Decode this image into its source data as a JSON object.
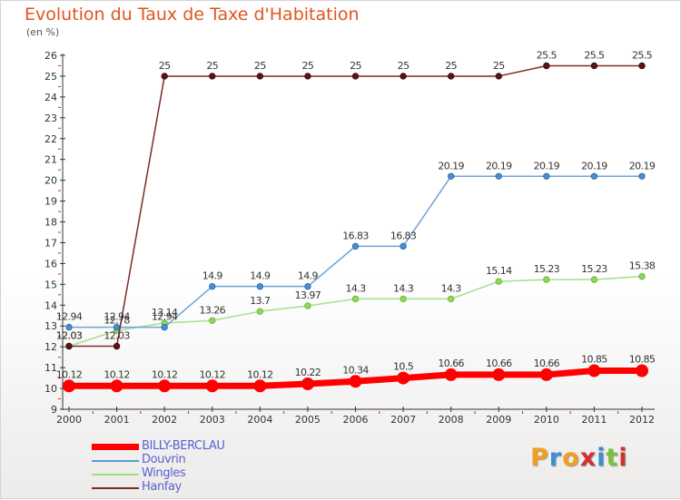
{
  "title": "Evolution du Taux de Taxe d'Habitation",
  "unit": "(en %)",
  "logo": "Proxiti",
  "chart_data": {
    "type": "line",
    "title": "Evolution du Taux de Taxe d'Habitation",
    "ylabel": "(en %)",
    "xlabel": "",
    "x": [
      "2000",
      "2001",
      "2002",
      "2003",
      "2004",
      "2005",
      "2006",
      "2007",
      "2008",
      "2009",
      "2010",
      "2011",
      "2012"
    ],
    "ylim": [
      9,
      26
    ],
    "yticks": [
      "9",
      "10",
      "11",
      "12",
      "13",
      "14",
      "15",
      "16",
      "17",
      "18",
      "19",
      "20",
      "21",
      "22",
      "23",
      "24",
      "25",
      "26"
    ],
    "grid": false,
    "legend_position": "bottom-left",
    "series": [
      {
        "name": "BILLY-BERCLAU",
        "color": "#ff0000",
        "values": [
          10.12,
          10.12,
          10.12,
          10.12,
          10.12,
          10.22,
          10.34,
          10.5,
          10.66,
          10.66,
          10.66,
          10.85,
          10.85
        ],
        "labels": [
          "10.12",
          "10.12",
          "10.12",
          "10.12",
          "10.12",
          "10.22",
          "10.34",
          "10.5",
          "10.66",
          "10.66",
          "10.66",
          "10.85",
          "10.85"
        ]
      },
      {
        "name": "Douvrin",
        "color": "#5b9bd5",
        "values": [
          12.94,
          12.94,
          12.94,
          14.9,
          14.9,
          14.9,
          16.83,
          16.83,
          20.19,
          20.19,
          20.19,
          20.19,
          20.19
        ],
        "labels": [
          "12.94",
          "12.94",
          "12.94",
          "14.9",
          "14.9",
          "14.9",
          "16.83",
          "16.83",
          "20.19",
          "20.19",
          "20.19",
          "20.19",
          "20.19"
        ]
      },
      {
        "name": "Wingles",
        "color": "#9ee07a",
        "values": [
          12.03,
          12.78,
          13.14,
          13.26,
          13.7,
          13.97,
          14.3,
          14.3,
          14.3,
          15.14,
          15.23,
          15.23,
          15.38
        ],
        "labels": [
          "12.03",
          "12.78",
          "13.14",
          "13.26",
          "13.7",
          "13.97",
          "14.3",
          "14.3",
          "14.3",
          "15.14",
          "15.23",
          "15.23",
          "15.38"
        ]
      },
      {
        "name": "Hanfay",
        "color": "#7b2a2a",
        "values": [
          12.03,
          12.03,
          25,
          25,
          25,
          25,
          25,
          25,
          25,
          25,
          25.5,
          25.5,
          25.5
        ],
        "labels": [
          "12.03",
          "12.03",
          "25",
          "25",
          "25",
          "25",
          "25",
          "25",
          "25",
          "25",
          "25.5",
          "25.5",
          "25.5"
        ]
      }
    ]
  }
}
